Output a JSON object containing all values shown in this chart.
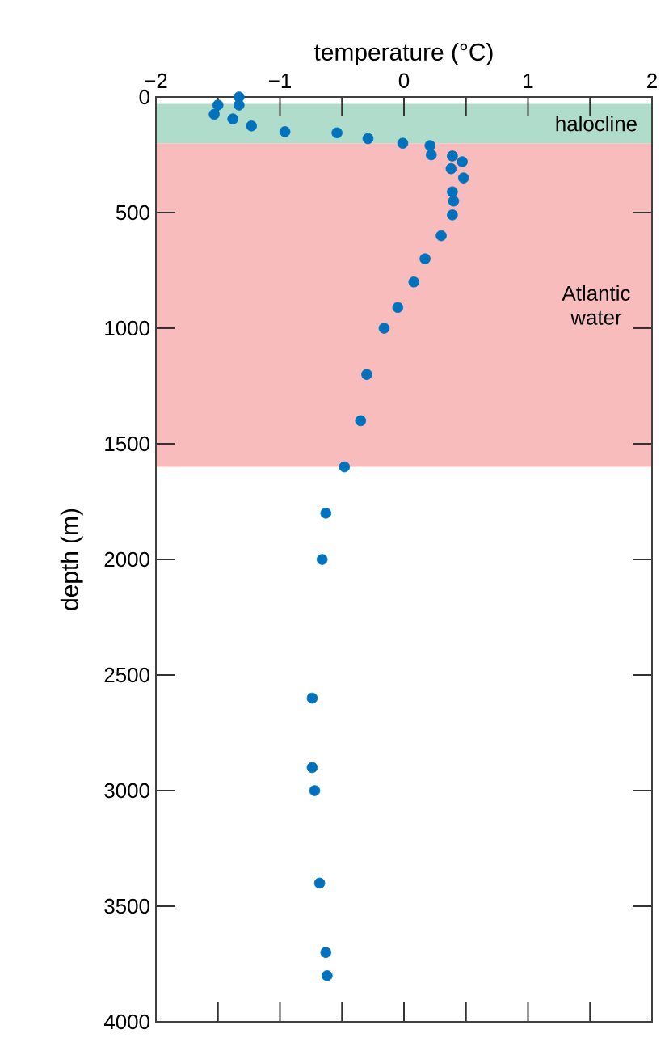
{
  "chart_data": {
    "type": "scatter",
    "xlabel": "temperature (°C)",
    "ylabel": "depth (m)",
    "xlim": [
      -2,
      2
    ],
    "ylim": [
      4000,
      0
    ],
    "xticks": [
      {
        "value": -2,
        "label": "−2"
      },
      {
        "value": -1,
        "label": "−1"
      },
      0,
      1,
      2
    ],
    "yticks": [
      0,
      500,
      1000,
      1500,
      2000,
      2500,
      3000,
      3500,
      4000
    ],
    "grid": false,
    "bands": [
      {
        "axis": "y",
        "from": 30,
        "to": 200,
        "label": "halocline",
        "color": "#b0dccb"
      },
      {
        "axis": "y",
        "from": 200,
        "to": 1600,
        "label": "Atlantic water",
        "color": "#f8bcbc"
      }
    ],
    "series": [
      {
        "color": "#0072bd",
        "x": [
          -1.33,
          -1.33,
          -1.5,
          -1.53,
          -1.38,
          -1.23,
          -0.96,
          -0.54,
          -0.29,
          -0.01,
          0.21,
          0.22,
          0.39,
          0.47,
          0.38,
          0.48,
          0.39,
          0.4,
          0.39,
          0.3,
          0.17,
          0.08,
          -0.05,
          -0.16,
          -0.3,
          -0.35,
          -0.48,
          -0.63,
          -0.66,
          -0.74,
          -0.74,
          -0.72,
          -0.68,
          -0.63,
          -0.62
        ],
        "values": [
          0,
          35,
          35,
          75,
          95,
          125,
          150,
          155,
          180,
          200,
          210,
          250,
          255,
          280,
          310,
          350,
          410,
          450,
          510,
          600,
          700,
          800,
          910,
          1000,
          1200,
          1400,
          1600,
          1800,
          2000,
          2600,
          2900,
          3000,
          3400,
          3700,
          3800
        ]
      }
    ]
  }
}
